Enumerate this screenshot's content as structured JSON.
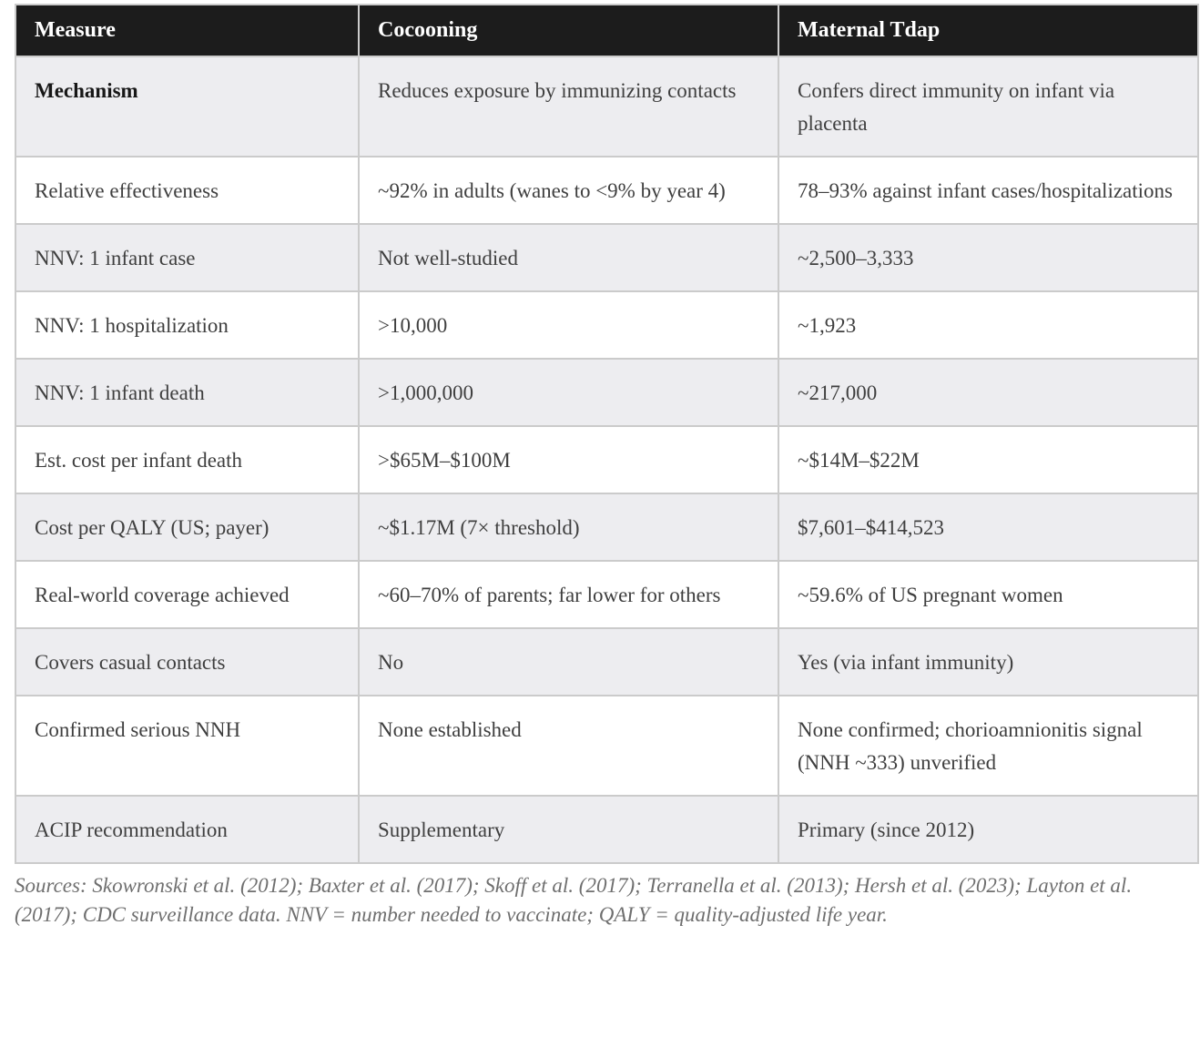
{
  "table": {
    "columns": [
      "Measure",
      "Cocooning",
      "Maternal Tdap"
    ],
    "rows": [
      {
        "cells": [
          "Mechanism",
          "Reduces exposure by immunizing contacts",
          "Confers direct immunity on infant via placenta"
        ]
      },
      {
        "cells": [
          "Relative effectiveness",
          "~92% in adults (wanes to <9% by year 4)",
          "78–93% against infant cases/hospitalizations"
        ]
      },
      {
        "cells": [
          "NNV: 1 infant case",
          "Not well-studied",
          "~2,500–3,333"
        ]
      },
      {
        "cells": [
          "NNV: 1 hospitalization",
          ">10,000",
          "~1,923"
        ]
      },
      {
        "cells": [
          "NNV: 1 infant death",
          ">1,000,000",
          "~217,000"
        ]
      },
      {
        "cells": [
          "Est. cost per infant death",
          ">$65M–$100M",
          "~$14M–$22M"
        ]
      },
      {
        "cells": [
          "Cost per QALY (US; payer)",
          "~$1.17M (7× threshold)",
          "$7,601–$414,523"
        ]
      },
      {
        "cells": [
          "Real-world coverage achieved",
          "~60–70% of parents; far lower for others",
          "~59.6% of US pregnant women"
        ]
      },
      {
        "cells": [
          "Covers casual contacts",
          "No",
          "Yes (via infant immunity)"
        ]
      },
      {
        "cells": [
          "Confirmed serious NNH",
          "None established",
          "None confirmed; chorioamnionitis signal (NNH ~333) unverified"
        ]
      },
      {
        "cells": [
          "ACIP recommendation",
          "Supplementary",
          "Primary (since 2012)"
        ]
      }
    ]
  },
  "footer": {
    "sources": "Sources: Skowronski et al. (2012); Baxter et al. (2017); Skoff et al. (2017); Terranella et al. (2013); Hersh et al. (2023); Layton et al. (2017); CDC surveillance data. NNV = number needed to vaccinate; QALY = quality-adjusted life year."
  },
  "colors": {
    "header_bg": "#1c1c1c",
    "header_text": "#ffffff",
    "row_bg": "#ffffff",
    "row_alt_bg": "#ededf0",
    "border": "#cbcbcb",
    "cell_text": "#3f3f3f",
    "footer_text": "#6f6f6f"
  }
}
